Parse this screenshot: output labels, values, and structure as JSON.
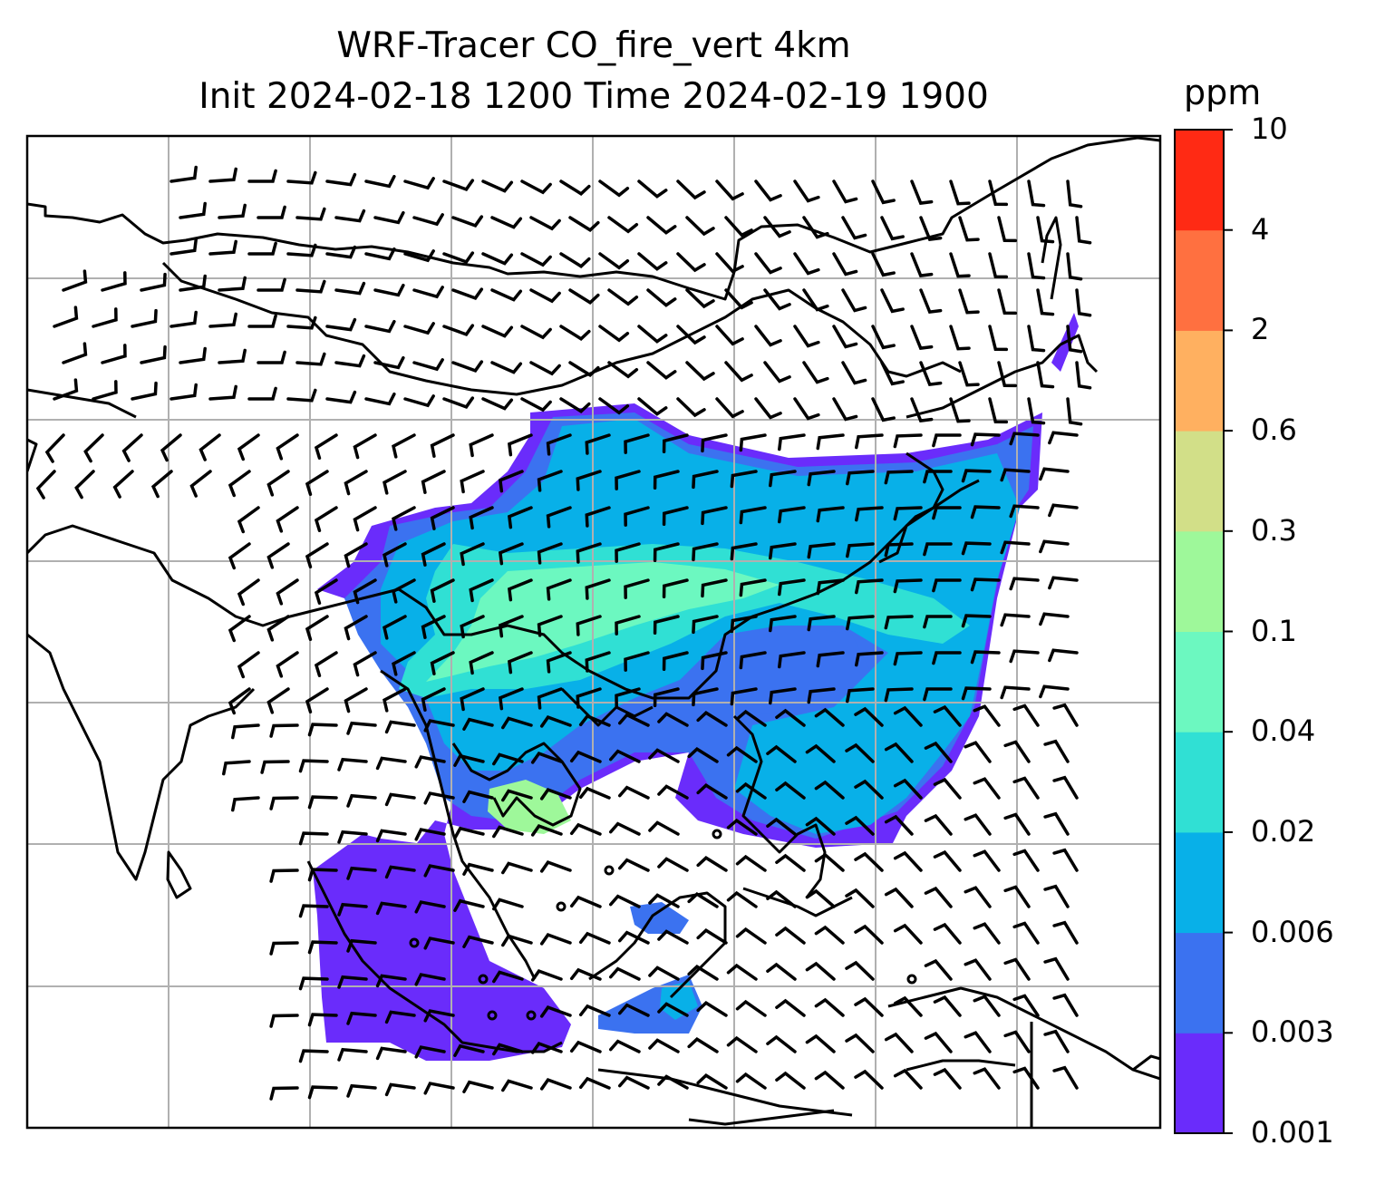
{
  "title": {
    "line1": "WRF-Tracer CO_fire_vert 4km",
    "line2": "Init 2024-02-18 1200 Time 2024-02-19 1900"
  },
  "colorbar": {
    "unit": "ppm",
    "ticks": [
      "0.001",
      "0.003",
      "0.006",
      "0.02",
      "0.04",
      "0.1",
      "0.3",
      "0.6",
      "2",
      "4",
      "10"
    ],
    "colors": [
      "#6a2cfb",
      "#3b72f0",
      "#08b0e8",
      "#30e0d4",
      "#6cf8c0",
      "#9ef89a",
      "#d2df88",
      "#ffb060",
      "#ff7040",
      "#ff2a14"
    ]
  },
  "legend_colors": {
    "background": "#ffffff",
    "coastline": "#000000",
    "gridline": "#b0b0b0",
    "barb": "#000000"
  }
}
